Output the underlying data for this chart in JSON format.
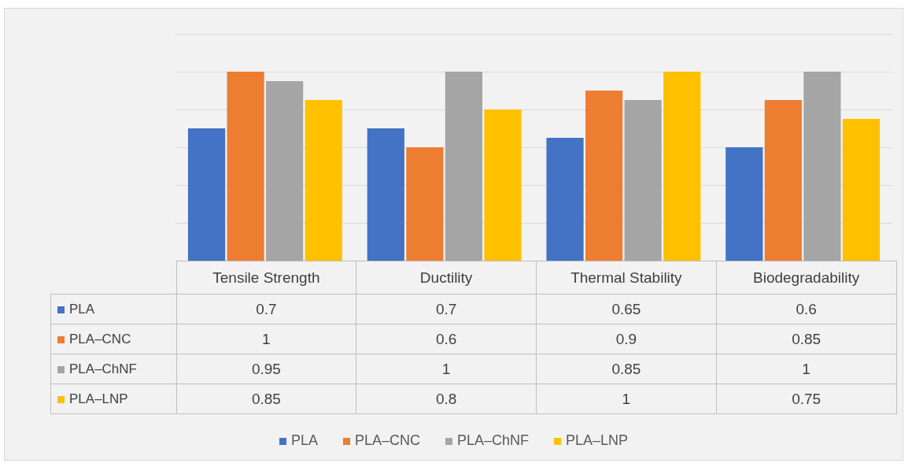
{
  "chart_data": {
    "type": "bar",
    "categories": [
      "Tensile Strength",
      "Ductility",
      "Thermal Stability",
      "Biodegradability"
    ],
    "series": [
      {
        "name": "PLA",
        "color": "#4472c4",
        "values": [
          0.7,
          0.7,
          0.65,
          0.6
        ]
      },
      {
        "name": "PLA–CNC",
        "color": "#ed7d31",
        "values": [
          1,
          0.6,
          0.9,
          0.85
        ]
      },
      {
        "name": "PLA–ChNF",
        "color": "#a5a5a5",
        "values": [
          0.95,
          1,
          0.85,
          1
        ]
      },
      {
        "name": "PLA–LNP",
        "color": "#ffc000",
        "values": [
          0.85,
          0.8,
          1,
          0.75
        ]
      }
    ],
    "ylim": [
      0,
      1.2
    ],
    "yticks": [
      {
        "value": 0,
        "label": null
      },
      {
        "value": 0.2,
        "label": null
      },
      {
        "value": 0.4,
        "label": null
      },
      {
        "value": 0.6,
        "label": null
      },
      {
        "value": 0.8,
        "label": null
      },
      {
        "value": 1,
        "label": null
      },
      {
        "value": 1.2,
        "label": null
      }
    ],
    "grid": "y",
    "legend": "bottom",
    "data_labels": true
  }
}
